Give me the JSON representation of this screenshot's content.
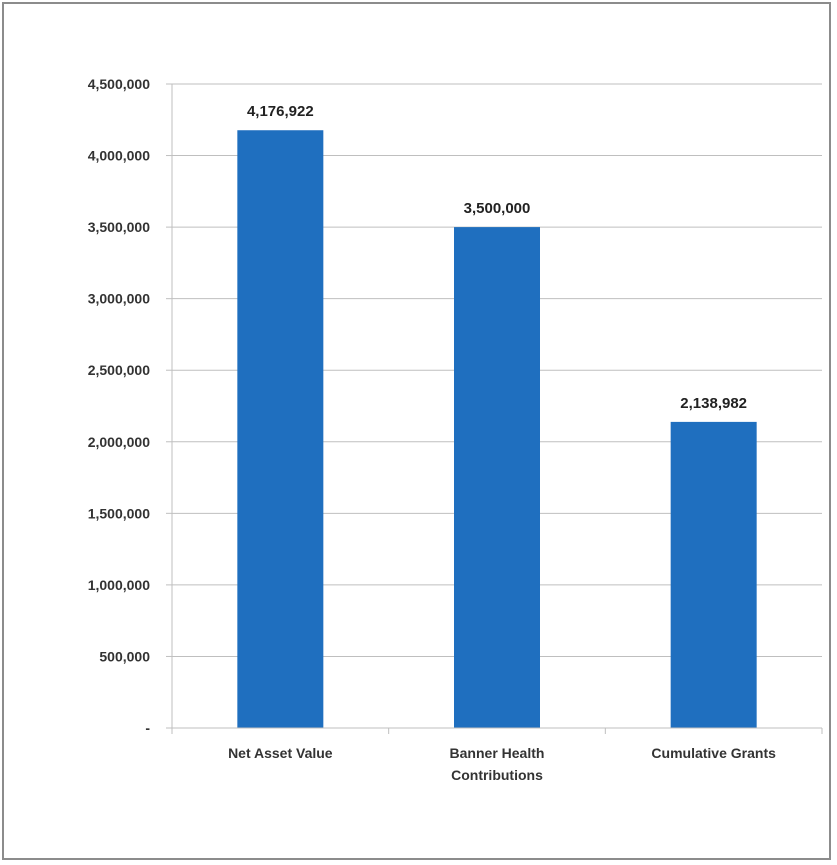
{
  "chart_data": {
    "type": "bar",
    "title": "",
    "xlabel": "",
    "ylabel": "",
    "categories": [
      [
        "Net Asset Value"
      ],
      [
        "Banner Health",
        "Contributions"
      ],
      [
        "Cumulative Grants"
      ]
    ],
    "values": [
      4176922,
      3500000,
      2138982
    ],
    "data_labels": [
      "4,176,922",
      "3,500,000",
      "2,138,982"
    ],
    "ylim": [
      0,
      4500000
    ],
    "y_ticks": [
      {
        "value": 0,
        "label": "-"
      },
      {
        "value": 500000,
        "label": "500,000"
      },
      {
        "value": 1000000,
        "label": "1,000,000"
      },
      {
        "value": 1500000,
        "label": "1,500,000"
      },
      {
        "value": 2000000,
        "label": "2,000,000"
      },
      {
        "value": 2500000,
        "label": "2,500,000"
      },
      {
        "value": 3000000,
        "label": "3,000,000"
      },
      {
        "value": 3500000,
        "label": "3,500,000"
      },
      {
        "value": 4000000,
        "label": "4,000,000"
      },
      {
        "value": 4500000,
        "label": "4,500,000"
      }
    ],
    "grid": true,
    "legend": "none",
    "colors": {
      "bar": "#1f6fbf",
      "grid": "#bfbfbf",
      "frame": "#8c8c8c"
    }
  }
}
